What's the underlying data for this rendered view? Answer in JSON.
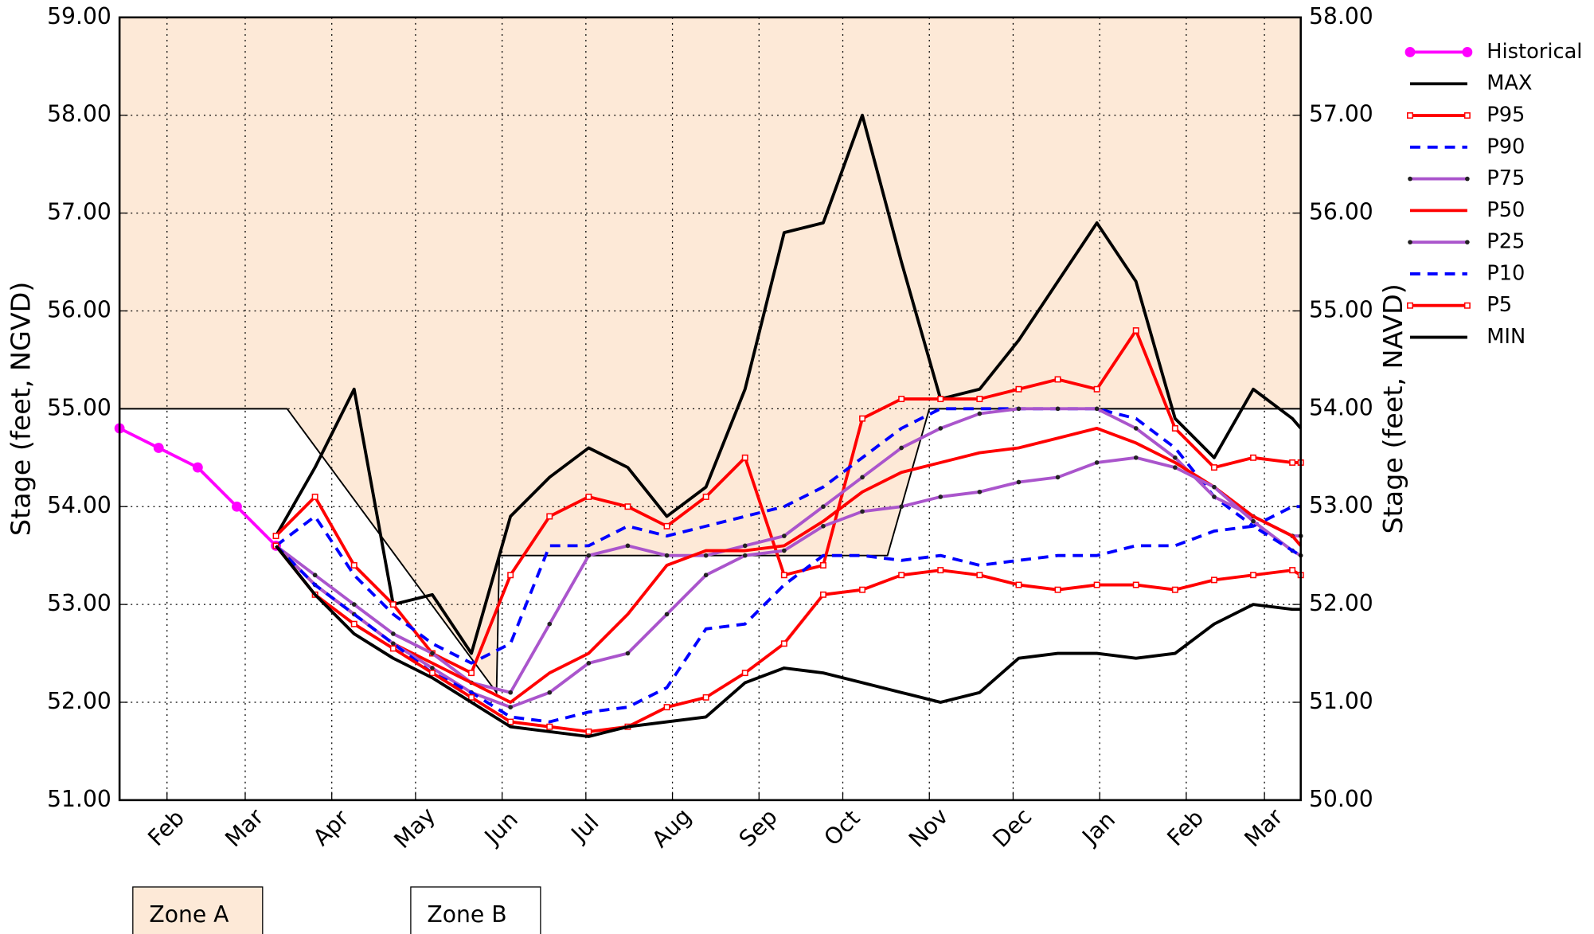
{
  "chart_data": {
    "type": "line",
    "ylabel": "Stage (feet, NGVD)",
    "y2label": "Stage (feet, NAVD)",
    "x": [
      0,
      14,
      28,
      42,
      56,
      70,
      84,
      98,
      112,
      126,
      140,
      154,
      168,
      182,
      196,
      210,
      224,
      238,
      252,
      266,
      280,
      294,
      308,
      322,
      336,
      350,
      364,
      378,
      392,
      406,
      420,
      423
    ],
    "xlim": [
      0,
      423
    ],
    "xticks": [
      {
        "value": 17,
        "label": "Feb"
      },
      {
        "value": 45,
        "label": "Mar"
      },
      {
        "value": 76,
        "label": "Apr"
      },
      {
        "value": 106,
        "label": "May"
      },
      {
        "value": 137,
        "label": "Jun"
      },
      {
        "value": 167,
        "label": "Jul"
      },
      {
        "value": 198,
        "label": "Aug"
      },
      {
        "value": 229,
        "label": "Sep"
      },
      {
        "value": 259,
        "label": "Oct"
      },
      {
        "value": 290,
        "label": "Nov"
      },
      {
        "value": 320,
        "label": "Dec"
      },
      {
        "value": 351,
        "label": "Jan"
      },
      {
        "value": 382,
        "label": "Feb"
      },
      {
        "value": 410,
        "label": "Mar"
      }
    ],
    "ylim": [
      51,
      59
    ],
    "yticks": [
      {
        "value": 51,
        "label": "51.00"
      },
      {
        "value": 52,
        "label": "52.00"
      },
      {
        "value": 53,
        "label": "53.00"
      },
      {
        "value": 54,
        "label": "54.00"
      },
      {
        "value": 55,
        "label": "55.00"
      },
      {
        "value": 56,
        "label": "56.00"
      },
      {
        "value": 57,
        "label": "57.00"
      },
      {
        "value": 58,
        "label": "58.00"
      },
      {
        "value": 59,
        "label": "59.00"
      }
    ],
    "y2lim": [
      50,
      58
    ],
    "y2ticks": [
      {
        "value": 50,
        "label": "50.00"
      },
      {
        "value": 51,
        "label": "51.00"
      },
      {
        "value": 52,
        "label": "52.00"
      },
      {
        "value": 53,
        "label": "53.00"
      },
      {
        "value": 54,
        "label": "54.00"
      },
      {
        "value": 55,
        "label": "55.00"
      },
      {
        "value": 56,
        "label": "56.00"
      },
      {
        "value": 57,
        "label": "57.00"
      },
      {
        "value": 58,
        "label": "58.00"
      }
    ],
    "grid": true,
    "legend": "right",
    "zone_boundary": {
      "x": [
        0,
        60,
        135,
        136,
        275,
        290,
        423
      ],
      "values": [
        55,
        55,
        52.1,
        53.5,
        53.5,
        55,
        55
      ],
      "color": "#fde9d7"
    },
    "zones": [
      {
        "label": "Zone A",
        "color": "#fde9d7"
      },
      {
        "label": "Zone B",
        "color": "#ffffff"
      }
    ],
    "series": [
      {
        "name": "Historical",
        "color": "#ff00ff",
        "dash": "solid",
        "marker": "circle",
        "values": [
          54.8,
          54.6,
          54.4,
          54.0,
          53.6,
          null,
          null,
          null,
          null,
          null,
          null,
          null,
          null,
          null,
          null,
          null,
          null,
          null,
          null,
          null,
          null,
          null,
          null,
          null,
          null,
          null,
          null,
          null,
          null,
          null,
          null,
          null
        ]
      },
      {
        "name": "MAX",
        "color": "#000000",
        "dash": "solid",
        "marker": "none",
        "values": [
          null,
          null,
          null,
          null,
          53.7,
          54.4,
          55.2,
          53.0,
          53.1,
          52.5,
          53.9,
          54.3,
          54.6,
          54.4,
          53.9,
          54.2,
          55.2,
          56.8,
          56.9,
          58.0,
          56.5,
          55.1,
          55.2,
          55.7,
          56.3,
          56.9,
          56.3,
          54.9,
          54.5,
          55.2,
          54.9,
          54.8
        ]
      },
      {
        "name": "P95",
        "color": "#ff0000",
        "dash": "solid",
        "marker": "square",
        "values": [
          null,
          null,
          null,
          null,
          53.7,
          54.1,
          53.4,
          53.0,
          52.5,
          52.3,
          53.3,
          53.9,
          54.1,
          54.0,
          53.8,
          54.1,
          54.5,
          53.3,
          53.4,
          54.9,
          55.1,
          55.1,
          55.1,
          55.2,
          55.3,
          55.2,
          55.8,
          54.8,
          54.4,
          54.5,
          54.45,
          54.45
        ]
      },
      {
        "name": "P90",
        "color": "#0000ff",
        "dash": "dashed",
        "marker": "none",
        "values": [
          null,
          null,
          null,
          null,
          53.6,
          53.9,
          53.3,
          52.9,
          52.6,
          52.4,
          52.6,
          53.6,
          53.6,
          53.8,
          53.7,
          53.8,
          53.9,
          54.0,
          54.2,
          54.5,
          54.8,
          55.0,
          55.0,
          55.0,
          55.0,
          55.0,
          54.9,
          54.6,
          54.1,
          53.8,
          54.0,
          54.0
        ]
      },
      {
        "name": "P75",
        "color": "#aa55cc",
        "dash": "solid",
        "marker": "dot",
        "values": [
          null,
          null,
          null,
          null,
          53.6,
          53.3,
          53.0,
          52.7,
          52.5,
          52.2,
          52.1,
          52.8,
          53.5,
          53.6,
          53.5,
          53.5,
          53.6,
          53.7,
          54.0,
          54.3,
          54.6,
          54.8,
          54.95,
          55.0,
          55.0,
          55.0,
          54.8,
          54.5,
          54.1,
          53.9,
          53.7,
          53.7
        ]
      },
      {
        "name": "P50",
        "color": "#ff0000",
        "dash": "solid",
        "marker": "none",
        "values": [
          null,
          null,
          null,
          null,
          53.6,
          53.2,
          52.9,
          52.6,
          52.4,
          52.2,
          52.0,
          52.3,
          52.5,
          52.9,
          53.4,
          53.55,
          53.55,
          53.6,
          53.85,
          54.15,
          54.35,
          54.45,
          54.55,
          54.6,
          54.7,
          54.8,
          54.65,
          54.45,
          54.2,
          53.9,
          53.7,
          53.6
        ]
      },
      {
        "name": "P25",
        "color": "#aa55cc",
        "dash": "solid",
        "marker": "dot",
        "values": [
          null,
          null,
          null,
          null,
          53.6,
          53.2,
          52.9,
          52.6,
          52.35,
          52.1,
          51.95,
          52.1,
          52.4,
          52.5,
          52.9,
          53.3,
          53.5,
          53.55,
          53.8,
          53.95,
          54.0,
          54.1,
          54.15,
          54.25,
          54.3,
          54.45,
          54.5,
          54.4,
          54.2,
          53.85,
          53.55,
          53.5
        ]
      },
      {
        "name": "P10",
        "color": "#0000ff",
        "dash": "dashed",
        "marker": "none",
        "values": [
          null,
          null,
          null,
          null,
          53.6,
          53.2,
          52.9,
          52.6,
          52.3,
          52.1,
          51.85,
          51.8,
          51.9,
          51.95,
          52.15,
          52.75,
          52.8,
          53.2,
          53.5,
          53.5,
          53.45,
          53.5,
          53.4,
          53.45,
          53.5,
          53.5,
          53.6,
          53.6,
          53.75,
          53.8,
          53.55,
          53.5
        ]
      },
      {
        "name": "P5",
        "color": "#ff0000",
        "dash": "solid",
        "marker": "square",
        "values": [
          null,
          null,
          null,
          null,
          53.6,
          53.1,
          52.8,
          52.55,
          52.3,
          52.05,
          51.8,
          51.75,
          51.7,
          51.75,
          51.95,
          52.05,
          52.3,
          52.6,
          53.1,
          53.15,
          53.3,
          53.35,
          53.3,
          53.2,
          53.15,
          53.2,
          53.2,
          53.15,
          53.25,
          53.3,
          53.35,
          53.3
        ]
      },
      {
        "name": "MIN",
        "color": "#000000",
        "dash": "solid",
        "marker": "none",
        "values": [
          null,
          null,
          null,
          null,
          53.6,
          53.1,
          52.7,
          52.45,
          52.25,
          52.0,
          51.75,
          51.7,
          51.65,
          51.75,
          51.8,
          51.85,
          52.2,
          52.35,
          52.3,
          52.2,
          52.1,
          52.0,
          52.1,
          52.45,
          52.5,
          52.5,
          52.45,
          52.5,
          52.8,
          53.0,
          52.95,
          52.95
        ]
      }
    ]
  }
}
